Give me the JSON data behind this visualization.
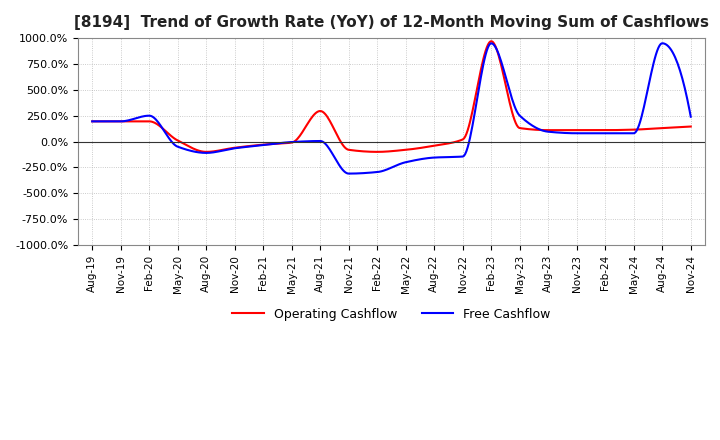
{
  "title": "[8194]  Trend of Growth Rate (YoY) of 12-Month Moving Sum of Cashflows",
  "ylim": [
    -1000,
    1000
  ],
  "yticks": [
    -1000,
    -750,
    -500,
    -250,
    0,
    250,
    500,
    750,
    1000
  ],
  "yticklabels": [
    "-1000.0%",
    "-750.0%",
    "-500.0%",
    "-250.0%",
    "0.0%",
    "250.0%",
    "500.0%",
    "750.0%",
    "1000.0%"
  ],
  "background_color": "#ffffff",
  "grid_color": "#aaaaaa",
  "operating_color": "#ff0000",
  "free_color": "#0000ff",
  "legend_labels": [
    "Operating Cashflow",
    "Free Cashflow"
  ],
  "x_labels": [
    "Aug-19",
    "Nov-19",
    "Feb-20",
    "May-20",
    "Aug-20",
    "Nov-20",
    "Feb-21",
    "May-21",
    "Aug-21",
    "Nov-21",
    "Feb-22",
    "May-22",
    "Aug-22",
    "Nov-22",
    "Feb-23",
    "May-23",
    "Aug-23",
    "Nov-23",
    "Feb-24",
    "May-24",
    "Aug-24",
    "Nov-24"
  ],
  "operating_y": [
    195,
    195,
    195,
    10,
    -100,
    -60,
    -30,
    -10,
    295,
    -80,
    -100,
    -80,
    -40,
    20,
    970,
    130,
    110,
    110,
    110,
    115,
    130,
    145
  ],
  "free_y": [
    195,
    195,
    250,
    -50,
    -110,
    -65,
    -35,
    -5,
    5,
    -310,
    -295,
    -200,
    -155,
    -145,
    950,
    250,
    95,
    80,
    80,
    80,
    950,
    240
  ]
}
